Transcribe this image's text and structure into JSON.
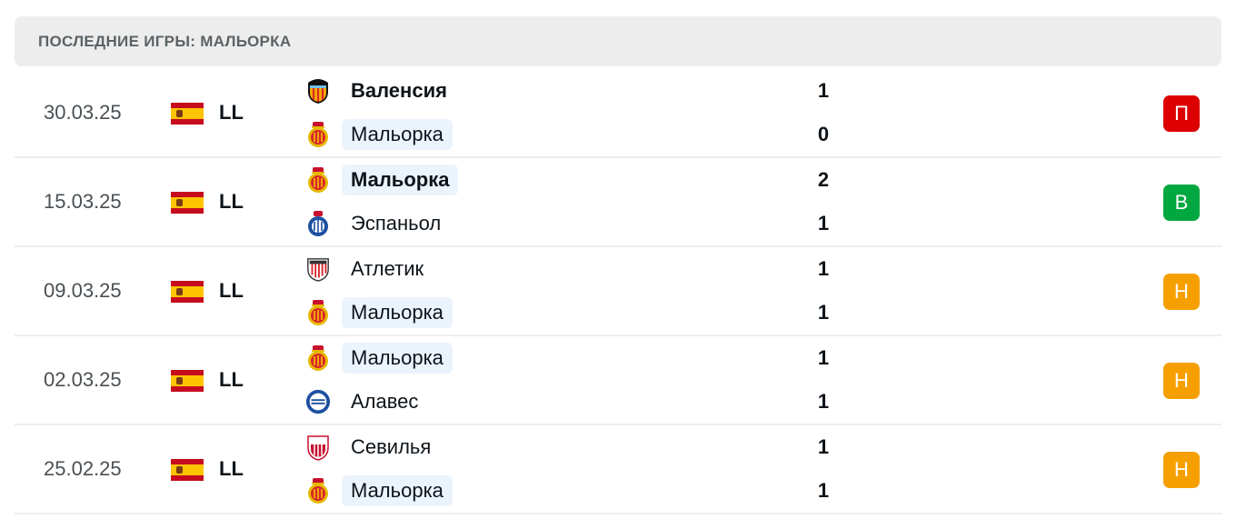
{
  "header": {
    "title": "ПОСЛЕДНИЕ ИГРЫ: МАЛЬОРКА"
  },
  "colors": {
    "loss": "#dd0000",
    "win": "#00a83f",
    "draw": "#f5a000",
    "highlight": "#ebf4fd"
  },
  "matches": [
    {
      "date": "30.03.25",
      "league": "LL",
      "home": {
        "name": "Валенсия",
        "logo": "valencia-crest",
        "bold": true,
        "hl": false
      },
      "away": {
        "name": "Мальорка",
        "logo": "mallorca-crest",
        "bold": false,
        "hl": true
      },
      "home_score": "1",
      "away_score": "0",
      "result": "П",
      "result_type": "loss"
    },
    {
      "date": "15.03.25",
      "league": "LL",
      "home": {
        "name": "Мальорка",
        "logo": "mallorca-crest",
        "bold": true,
        "hl": true
      },
      "away": {
        "name": "Эспаньол",
        "logo": "espanyol-crest",
        "bold": false,
        "hl": false
      },
      "home_score": "2",
      "away_score": "1",
      "result": "В",
      "result_type": "win"
    },
    {
      "date": "09.03.25",
      "league": "LL",
      "home": {
        "name": "Атлетик",
        "logo": "athletic-crest",
        "bold": false,
        "hl": false
      },
      "away": {
        "name": "Мальорка",
        "logo": "mallorca-crest",
        "bold": false,
        "hl": true
      },
      "home_score": "1",
      "away_score": "1",
      "result": "Н",
      "result_type": "draw"
    },
    {
      "date": "02.03.25",
      "league": "LL",
      "home": {
        "name": "Мальорка",
        "logo": "mallorca-crest",
        "bold": false,
        "hl": true
      },
      "away": {
        "name": "Алавес",
        "logo": "alaves-crest",
        "bold": false,
        "hl": false
      },
      "home_score": "1",
      "away_score": "1",
      "result": "Н",
      "result_type": "draw"
    },
    {
      "date": "25.02.25",
      "league": "LL",
      "home": {
        "name": "Севилья",
        "logo": "sevilla-crest",
        "bold": false,
        "hl": false
      },
      "away": {
        "name": "Мальорка",
        "logo": "mallorca-crest",
        "bold": false,
        "hl": true
      },
      "home_score": "1",
      "away_score": "1",
      "result": "Н",
      "result_type": "draw"
    }
  ]
}
